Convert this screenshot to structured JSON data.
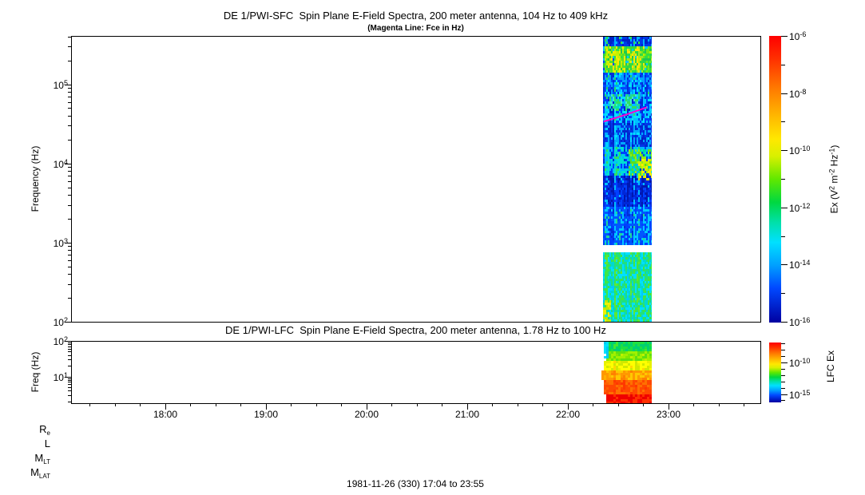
{
  "figure": {
    "footer": "1981-11-26 (330) 17:04 to 23:55",
    "background": "#ffffff",
    "axis_color": "#000000"
  },
  "orbit_rows": [
    {
      "base": "R",
      "sub": "e"
    },
    {
      "base": "L",
      "sub": ""
    },
    {
      "base": "M",
      "sub": "LT"
    },
    {
      "base": "M",
      "sub": "LAT"
    }
  ],
  "colormap_stops": [
    [
      0,
      "#ff0000"
    ],
    [
      0.08,
      "#ff3000"
    ],
    [
      0.18,
      "#ff7800"
    ],
    [
      0.28,
      "#ffb800"
    ],
    [
      0.36,
      "#ffe800"
    ],
    [
      0.42,
      "#d8f000"
    ],
    [
      0.5,
      "#60e800"
    ],
    [
      0.58,
      "#00d840"
    ],
    [
      0.65,
      "#00e0a8"
    ],
    [
      0.72,
      "#00e0ff"
    ],
    [
      0.8,
      "#00a0ff"
    ],
    [
      0.88,
      "#0048ff"
    ],
    [
      1,
      "#0000a0"
    ]
  ],
  "chart_data": [
    {
      "type": "heatmap",
      "name": "sfc",
      "title": "DE 1/PWI-SFC  Spin Plane E-Field Spectra, 200 meter antenna, 104 Hz to 409 kHz",
      "annotation": "(Magenta Line: Fce in Hz)",
      "ylabel": "Frequency (Hz)",
      "ylim_hz": [
        100,
        409000
      ],
      "ytick_exponents": [
        2,
        3,
        4,
        5
      ],
      "xlim_time": [
        "17:04",
        "23:55"
      ],
      "data_window_time": [
        "22:21",
        "22:50"
      ],
      "grid": false,
      "colorbar": {
        "label_parts": [
          {
            "t": "Ex (V"
          },
          {
            "sup": "2"
          },
          {
            "t": " m"
          },
          {
            "sup": "-2"
          },
          {
            "t": " Hz"
          },
          {
            "sup": "-1"
          },
          {
            "t": ")"
          }
        ],
        "labeled_exponents": [
          -6,
          -8,
          -10,
          -12,
          -14,
          -16
        ],
        "minor_exponents": [
          -7,
          -9,
          -11,
          -13,
          -15
        ]
      },
      "fce_line": {
        "color": "#ff00cc",
        "t0": "22:22",
        "f0_hz": 34000,
        "t1": "22:47",
        "f1_hz": 51000
      },
      "seed": 7,
      "bands": [
        {
          "y0": 0.0,
          "y1": 0.03,
          "palette": [
            "#0020c8",
            "#0020c8",
            "#0038e8",
            "#00b0ff",
            "#30e050"
          ]
        },
        {
          "y0": 0.03,
          "y1": 0.125,
          "palette": [
            "#0048ff",
            "#00c8ff",
            "#20c850",
            "#30e040",
            "#70e818",
            "#b8f000",
            "#e8f000"
          ]
        },
        {
          "y0": 0.125,
          "y1": 0.215,
          "palette": [
            "#0030d8",
            "#0030d8",
            "#0048ff",
            "#00a0ff",
            "#00e0ff",
            "#20d870"
          ]
        },
        {
          "y0": 0.215,
          "y1": 0.3,
          "palette": [
            "#0028d0",
            "#0028d0",
            "#0040ff",
            "#00c0ff",
            "#00e0ff",
            "#30e060"
          ]
        },
        {
          "y0": 0.3,
          "y1": 0.385,
          "palette": [
            "#0020c0",
            "#0028d0",
            "#0038e8",
            "#00a8ff",
            "#00e0ff"
          ]
        },
        {
          "y0": 0.385,
          "y1": 0.49,
          "palette": [
            "#0030d8",
            "#0040ff",
            "#00b8ff",
            "#00e0d0",
            "#30e060"
          ]
        },
        {
          "y0": 0.49,
          "y1": 0.6,
          "palette": [
            "#0018b0",
            "#0018b0",
            "#0028d8",
            "#0040ff",
            "#00c0ff"
          ]
        },
        {
          "y0": 0.6,
          "y1": 0.728,
          "palette": [
            "#0030d8",
            "#0040ff",
            "#0058ff",
            "#00c8ff",
            "#20d898"
          ]
        },
        {
          "y0": 0.728,
          "y1": 0.758,
          "white": true
        },
        {
          "y0": 0.758,
          "y1": 1.0,
          "palette": [
            "#00c8ff",
            "#00d8d0",
            "#00e0ff",
            "#20e080",
            "#40e840",
            "#60e830"
          ]
        }
      ],
      "hotspots": [
        {
          "x0": 0.08,
          "x1": 0.45,
          "y0": 0.035,
          "y1": 0.12,
          "p": 0.6,
          "palette": [
            "#ffe800",
            "#c8f000",
            "#50e030"
          ]
        },
        {
          "x0": 0.5,
          "x1": 0.85,
          "y0": 0.04,
          "y1": 0.125,
          "p": 0.6,
          "palette": [
            "#ffe800",
            "#a0e820",
            "#30d840"
          ]
        },
        {
          "x0": 0.16,
          "x1": 0.38,
          "y0": 0.205,
          "y1": 0.26,
          "p": 0.65,
          "palette": [
            "#30e060",
            "#00e0b0",
            "#40e8d0"
          ]
        },
        {
          "x0": 0.46,
          "x1": 0.74,
          "y0": 0.205,
          "y1": 0.26,
          "p": 0.65,
          "palette": [
            "#30e060",
            "#20d898",
            "#40e8d0"
          ]
        },
        {
          "x0": 0.55,
          "x1": 1.0,
          "y0": 0.4,
          "y1": 0.48,
          "p": 0.6,
          "palette": [
            "#58e020",
            "#90ee10",
            "#00d8a0"
          ]
        },
        {
          "x0": 0.75,
          "x1": 1.0,
          "y0": 0.43,
          "y1": 0.5,
          "p": 0.5,
          "palette": [
            "#c8f000",
            "#ffe800"
          ]
        },
        {
          "x0": 0.0,
          "x1": 0.15,
          "y0": 0.93,
          "y1": 1.0,
          "p": 0.6,
          "palette": [
            "#f0f000",
            "#c0e800"
          ]
        }
      ]
    },
    {
      "type": "heatmap",
      "name": "lfc",
      "title": "DE 1/PWI-LFC  Spin Plane E-Field Spectra, 200 meter antenna, 1.78 Hz to 100 Hz",
      "ylabel": "Freq (Hz)",
      "ylim_hz": [
        1.78,
        100
      ],
      "ytick_exponents": [
        1,
        2
      ],
      "xlim_time": [
        "17:04",
        "23:55"
      ],
      "xtick_labels": [
        "18:00",
        "19:00",
        "20:00",
        "21:00",
        "22:00",
        "23:00"
      ],
      "data_window_time": [
        "22:20",
        "22:50"
      ],
      "grid": false,
      "colorbar": {
        "label_parts": [
          {
            "t": "LFC Ex"
          }
        ],
        "labeled_exponents": [
          -10,
          -15
        ],
        "minor_exponents": [
          -7,
          -8,
          -9,
          -11,
          -12,
          -13,
          -14,
          -16
        ]
      },
      "seed": 13,
      "bands": [
        {
          "y0": 0.0,
          "y1": 0.17,
          "x0": 0.08,
          "palette": [
            "#00e050",
            "#20e040",
            "#00d070",
            "#40e830"
          ]
        },
        {
          "y0": 0.17,
          "y1": 0.3,
          "x0": 0.08,
          "palette": [
            "#80e800",
            "#a0f000",
            "#60e010",
            "#c0f000"
          ]
        },
        {
          "y0": 0.3,
          "y1": 0.45,
          "x0": 0.06,
          "palette": [
            "#e8f000",
            "#ffff00",
            "#d0e800",
            "#ffd800"
          ]
        },
        {
          "y0": 0.45,
          "y1": 0.64,
          "x0": 0.0,
          "palette": [
            "#ffb000",
            "#ff9800",
            "#ffc800",
            "#ff8000"
          ]
        },
        {
          "y0": 0.64,
          "y1": 0.85,
          "x0": 0.05,
          "palette": [
            "#ff6000",
            "#ff4800",
            "#ff7000",
            "#ff3800"
          ]
        },
        {
          "y0": 0.85,
          "y1": 1.0,
          "x0": 0.1,
          "palette": [
            "#ff1800",
            "#f00000",
            "#ff3000",
            "#e80000"
          ]
        }
      ],
      "hotspots": [
        {
          "x0": 0.06,
          "x1": 0.11,
          "y0": 0.0,
          "y1": 0.25,
          "p": 0.9,
          "palette": [
            "#00e0ff",
            "#00c8f0"
          ]
        }
      ]
    }
  ]
}
